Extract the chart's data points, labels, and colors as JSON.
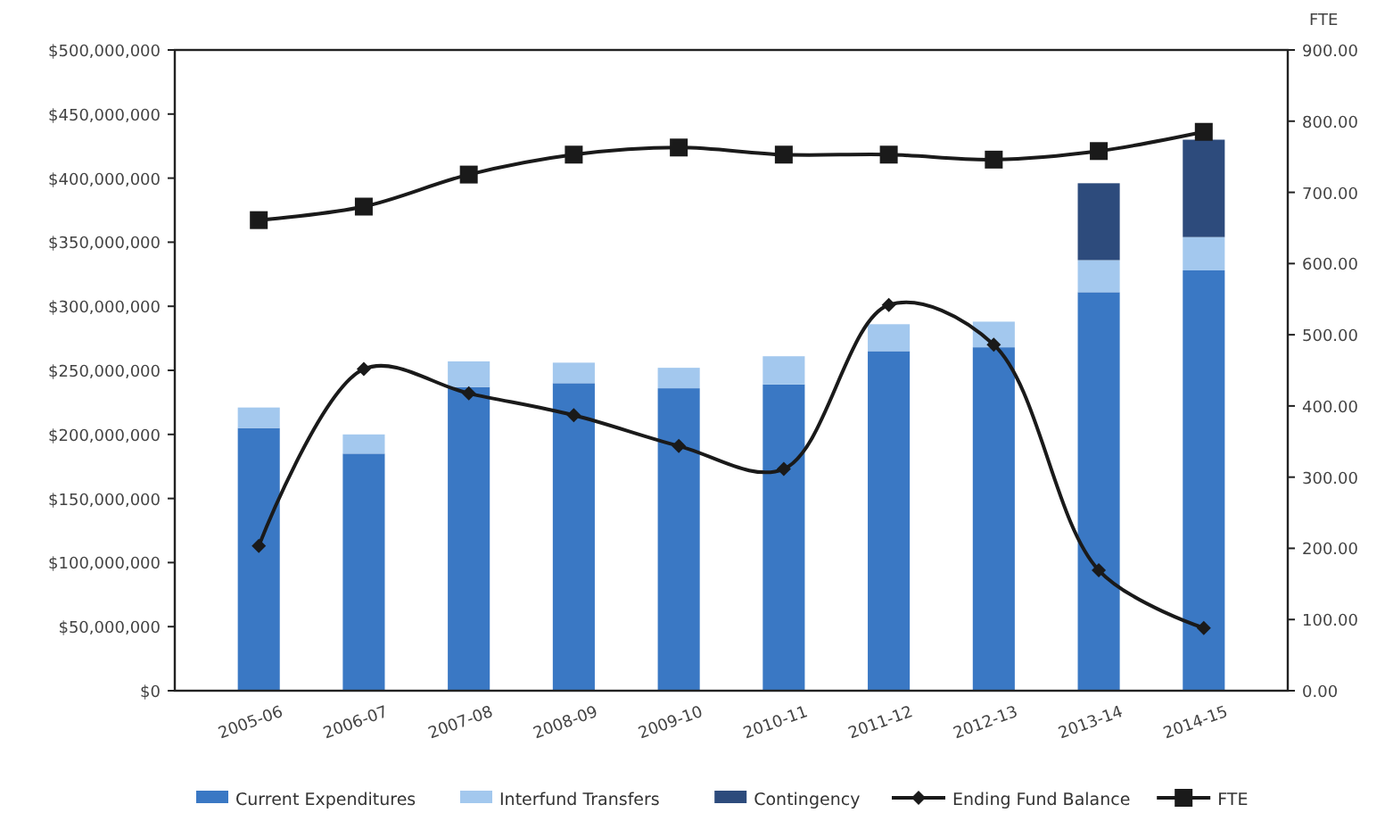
{
  "chart_data": {
    "type": "bar",
    "stacked": true,
    "y2label": "FTE",
    "legend": "bottom",
    "categories": [
      "2005-06",
      "2006-07",
      "2007-08",
      "2008-09",
      "2009-10",
      "2010-11",
      "2011-12",
      "2012-13",
      "2013-14",
      "2014-15"
    ],
    "series": [
      {
        "name": "Current Expenditures",
        "color": "#3a78c4",
        "values": [
          205000000,
          185000000,
          237000000,
          240000000,
          236000000,
          239000000,
          265000000,
          268000000,
          311000000,
          328000000
        ]
      },
      {
        "name": "Interfund Transfers",
        "color": "#a3c8ee",
        "values": [
          16000000,
          15000000,
          20000000,
          16000000,
          16000000,
          22000000,
          21000000,
          20000000,
          25000000,
          26000000
        ]
      },
      {
        "name": "Contingency",
        "color": "#2d4b7c",
        "values": [
          null,
          null,
          null,
          null,
          null,
          null,
          null,
          null,
          60000000,
          76000000
        ]
      },
      {
        "name": "Ending Fund Balance",
        "type": "line",
        "color": "#1a1a1a",
        "marker": "diamond",
        "values": [
          113000000,
          251000000,
          232000000,
          215000000,
          191000000,
          173000000,
          301000000,
          270000000,
          94000000,
          49000000
        ]
      },
      {
        "name": "FTE",
        "type": "line",
        "axis": "y2",
        "color": "#1a1a1a",
        "marker": "square",
        "values": [
          661,
          680,
          725,
          753,
          763,
          753,
          753,
          746,
          758,
          785
        ]
      }
    ],
    "ylim": [
      0,
      500000000
    ],
    "yticks": [
      {
        "value": 0,
        "label": "$0"
      },
      {
        "value": 50000000,
        "label": "$50,000,000"
      },
      {
        "value": 100000000,
        "label": "$100,000,000"
      },
      {
        "value": 150000000,
        "label": "$150,000,000"
      },
      {
        "value": 200000000,
        "label": "$200,000,000"
      },
      {
        "value": 250000000,
        "label": "$250,000,000"
      },
      {
        "value": 300000000,
        "label": "$300,000,000"
      },
      {
        "value": 350000000,
        "label": "$350,000,000"
      },
      {
        "value": 400000000,
        "label": "$400,000,000"
      },
      {
        "value": 450000000,
        "label": "$450,000,000"
      },
      {
        "value": 500000000,
        "label": "$500,000,000"
      }
    ],
    "y2lim": [
      0,
      900
    ],
    "y2ticks": [
      {
        "value": 0,
        "label": "0.00"
      },
      {
        "value": 100,
        "label": "100.00"
      },
      {
        "value": 200,
        "label": "200.00"
      },
      {
        "value": 300,
        "label": "300.00"
      },
      {
        "value": 400,
        "label": "400.00"
      },
      {
        "value": 500,
        "label": "500.00"
      },
      {
        "value": 600,
        "label": "600.00"
      },
      {
        "value": 700,
        "label": "700.00"
      },
      {
        "value": 800,
        "label": "800.00"
      },
      {
        "value": 900,
        "label": "900.00"
      }
    ]
  }
}
